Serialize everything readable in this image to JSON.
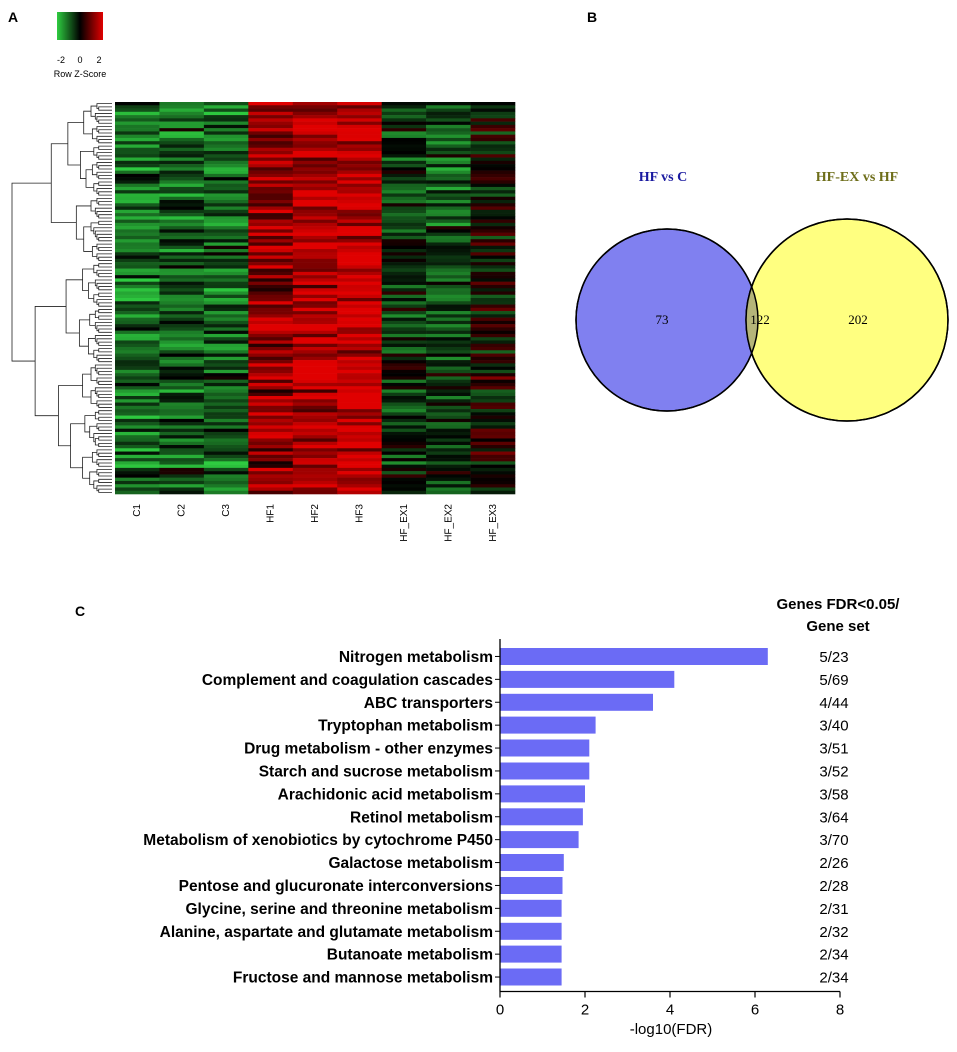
{
  "panels": {
    "a": "A",
    "b": "B",
    "c": "C"
  },
  "heatmap": {
    "legend": {
      "title": "Row Z-Score",
      "ticks": [
        "-2",
        "0",
        "2"
      ],
      "colors": [
        "#2ecc40",
        "#000000",
        "#e00000"
      ]
    },
    "columns": [
      "C1",
      "C2",
      "C3",
      "HF1",
      "HF2",
      "HF3",
      "HF_EX1",
      "HF_EX2",
      "HF_EX3"
    ],
    "column_group_means": [
      -1.0,
      -0.8,
      -0.9,
      1.3,
      1.7,
      1.8,
      -0.4,
      -0.6,
      0.1
    ],
    "row_count": 120
  },
  "venn": {
    "left_label": "HF vs C",
    "right_label": "HF-EX vs HF",
    "left_only": "73",
    "intersection": "122",
    "right_only": "202",
    "colors": {
      "left": "#8080f0",
      "right": "#ffff80",
      "overlap": "#b5b579",
      "left_text": "#1a1aa0",
      "right_text": "#6e6e1a"
    }
  },
  "chart_data": {
    "type": "bar",
    "orientation": "horizontal",
    "title": "",
    "xlabel": "-log10(FDR)",
    "ylabel": "",
    "xlim": [
      0,
      8
    ],
    "xticks": [
      "0",
      "2",
      "4",
      "6",
      "8"
    ],
    "bar_color": "#6b6bf5",
    "ratio_header": [
      "Genes FDR<0.05/",
      "Gene set"
    ],
    "categories": [
      "Nitrogen metabolism",
      "Complement and coagulation cascades",
      "ABC transporters",
      "Tryptophan metabolism",
      "Drug metabolism - other enzymes",
      "Starch and sucrose metabolism",
      "Arachidonic acid metabolism",
      "Retinol metabolism",
      "Metabolism of xenobiotics by cytochrome P450",
      "Galactose metabolism",
      "Pentose and glucuronate interconversions",
      "Glycine, serine and threonine metabolism",
      "Alanine, aspartate and glutamate metabolism",
      "Butanoate metabolism",
      "Fructose and mannose metabolism"
    ],
    "values": [
      6.3,
      4.1,
      3.6,
      2.25,
      2.1,
      2.1,
      2.0,
      1.95,
      1.85,
      1.5,
      1.47,
      1.45,
      1.45,
      1.45,
      1.45
    ],
    "ratios": [
      "5/23",
      "5/69",
      "4/44",
      "3/40",
      "3/51",
      "3/52",
      "3/58",
      "3/64",
      "3/70",
      "2/26",
      "2/28",
      "2/31",
      "2/32",
      "2/34",
      "2/34"
    ]
  }
}
